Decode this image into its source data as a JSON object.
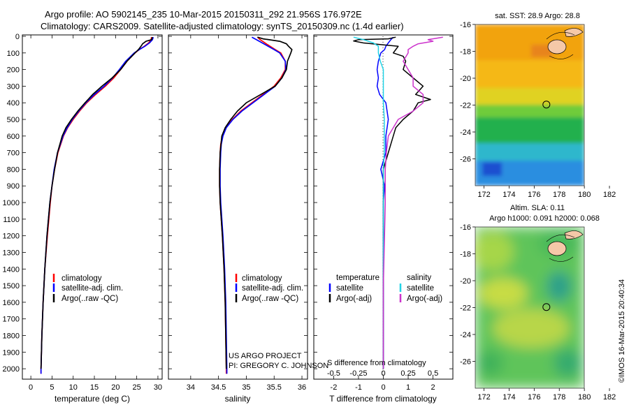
{
  "header": {
    "line1": "Argo profile: AO 5902145_235 10-Mar-2015 20150311_292 21.956S 176.972E",
    "line2": "Climatology: CARS2009. Satellite-adjusted climatology: synTS_20150309.nc (1.4d earlier)"
  },
  "colors": {
    "climatology": "#ff0000",
    "satellite": "#0000ff",
    "argo": "#000000",
    "sat_salinity": "#22d3e6",
    "argo_salinity": "#cc33cc"
  },
  "chart_data": [
    {
      "type": "line",
      "id": "temperature",
      "xlabel": "temperature (deg C)",
      "ylabel": "",
      "xlim": [
        -2,
        31
      ],
      "ylim": [
        2050,
        0
      ],
      "xticks": [
        0,
        5,
        10,
        15,
        20,
        25,
        30
      ],
      "yticks": [
        0,
        100,
        200,
        300,
        400,
        500,
        600,
        700,
        800,
        900,
        1000,
        1100,
        1200,
        1300,
        1400,
        1500,
        1600,
        1700,
        1800,
        1900,
        2000
      ],
      "legend": [
        "climatology",
        "satellite-adj. clim.",
        "Argo(..raw -QC)"
      ],
      "series": [
        {
          "key": "climatology",
          "color": "#ff0000",
          "y": [
            5,
            20,
            40,
            60,
            80,
            100,
            150,
            200,
            250,
            300,
            350,
            400,
            450,
            500,
            550,
            600,
            700,
            800,
            900,
            1000,
            1200,
            1400,
            1600,
            1800,
            2000,
            2030
          ],
          "x": [
            28.5,
            28.4,
            27.8,
            26.8,
            25.6,
            24.6,
            22.7,
            21.2,
            19.6,
            17.6,
            15.3,
            13.2,
            11.5,
            10.0,
            8.7,
            7.7,
            6.4,
            5.6,
            5.0,
            4.6,
            3.9,
            3.3,
            2.9,
            2.6,
            2.4,
            2.4
          ]
        },
        {
          "key": "satellite",
          "color": "#0000ff",
          "y": [
            5,
            20,
            40,
            60,
            80,
            100,
            150,
            200,
            250,
            300,
            350,
            400,
            450,
            500,
            550,
            600,
            700,
            800,
            900,
            1000,
            1200,
            1400,
            1600,
            1800,
            2000,
            2030
          ],
          "x": [
            28.9,
            28.7,
            28.0,
            26.9,
            25.6,
            24.4,
            22.4,
            20.9,
            19.3,
            17.3,
            15.0,
            13.0,
            11.3,
            9.8,
            8.6,
            7.6,
            6.3,
            5.5,
            5.0,
            4.5,
            3.8,
            3.3,
            2.9,
            2.6,
            2.4,
            2.4
          ]
        },
        {
          "key": "argo",
          "color": "#000000",
          "y": [
            5,
            20,
            30,
            45,
            60,
            80,
            100,
            150,
            200,
            250,
            300,
            350,
            400,
            450,
            500,
            550,
            600,
            700,
            800,
            900,
            1000,
            1200,
            1400,
            1600,
            1800,
            2000
          ],
          "x": [
            28.7,
            28.5,
            27.2,
            26.4,
            26.0,
            25.4,
            24.6,
            22.7,
            21.2,
            19.2,
            16.8,
            14.6,
            12.8,
            11.1,
            9.6,
            8.3,
            7.4,
            6.3,
            5.6,
            5.0,
            4.5,
            3.8,
            3.3,
            2.9,
            2.6,
            2.4
          ]
        }
      ]
    },
    {
      "type": "line",
      "id": "salinity",
      "xlabel": "salinity",
      "xlim": [
        33.6,
        36.1
      ],
      "ylim": [
        2050,
        0
      ],
      "xticks": [
        34,
        34.5,
        35,
        35.5,
        36
      ],
      "legend": [
        "climatology",
        "satellite-adj. clim.",
        "Argo(..raw -QC)"
      ],
      "annotation": [
        "US ARGO PROJECT",
        "PI: GREGORY C. JOHNSON"
      ],
      "series": [
        {
          "key": "climatology",
          "color": "#ff0000",
          "y": [
            5,
            20,
            50,
            80,
            100,
            150,
            200,
            250,
            300,
            350,
            400,
            450,
            500,
            550,
            600,
            650,
            700,
            800,
            900,
            1000,
            1100,
            1200,
            1400,
            1600,
            1800,
            2000,
            2030
          ],
          "x": [
            35.2,
            35.25,
            35.38,
            35.52,
            35.62,
            35.7,
            35.7,
            35.62,
            35.5,
            35.3,
            35.1,
            34.9,
            34.75,
            34.63,
            34.57,
            34.54,
            34.53,
            34.52,
            34.52,
            34.53,
            34.55,
            34.57,
            34.6,
            34.62,
            34.63,
            34.64,
            34.64
          ]
        },
        {
          "key": "satellite",
          "color": "#0000ff",
          "y": [
            5,
            20,
            50,
            80,
            100,
            150,
            200,
            250,
            300,
            350,
            400,
            450,
            500,
            550,
            600,
            650,
            700,
            800,
            900,
            1000,
            1100,
            1200,
            1400,
            1600,
            1800,
            2000,
            2030
          ],
          "x": [
            35.1,
            35.18,
            35.34,
            35.5,
            35.6,
            35.7,
            35.71,
            35.64,
            35.52,
            35.32,
            35.12,
            34.92,
            34.76,
            34.64,
            34.58,
            34.55,
            34.54,
            34.53,
            34.53,
            34.54,
            34.56,
            34.58,
            34.61,
            34.63,
            34.64,
            34.65,
            34.65
          ]
        },
        {
          "key": "argo",
          "color": "#000000",
          "y": [
            5,
            15,
            30,
            45,
            60,
            80,
            100,
            150,
            200,
            250,
            300,
            350,
            400,
            450,
            500,
            550,
            600,
            700,
            800,
            900,
            1000,
            1200,
            1400,
            1600,
            1800,
            2000
          ],
          "x": [
            35.2,
            35.3,
            35.6,
            35.72,
            35.76,
            35.82,
            35.8,
            35.74,
            35.72,
            35.64,
            35.52,
            35.26,
            35.0,
            34.84,
            34.72,
            34.62,
            34.56,
            34.53,
            34.52,
            34.52,
            34.53,
            34.57,
            34.6,
            34.62,
            34.63,
            34.64
          ]
        }
      ]
    },
    {
      "type": "line",
      "id": "difference",
      "xlabel": "T difference from climatology",
      "xlabel_top": "S difference from climatology",
      "xlim": [
        -2.8,
        2.8
      ],
      "ylim": [
        2050,
        0
      ],
      "xticks": [
        -2,
        -1,
        0,
        1,
        2
      ],
      "xticks_s": [
        "-0.5",
        "-0.25",
        "0",
        "0.25",
        "0.5"
      ],
      "legend_groups": [
        {
          "title": "temperature",
          "items": [
            "satellite",
            "Argo(-adj)"
          ]
        },
        {
          "title": "salinity",
          "items": [
            "satellite",
            "Argo(-adj)"
          ]
        }
      ],
      "series": [
        {
          "key": "t_satellite",
          "name": "satellite",
          "color": "#0000ff",
          "y": [
            5,
            20,
            40,
            60,
            80,
            100,
            150,
            200,
            250,
            300,
            350,
            400,
            500,
            600,
            700,
            800,
            900,
            1000,
            1500,
            2000
          ],
          "x": [
            0.4,
            0.3,
            0.2,
            0.1,
            0.05,
            -0.1,
            -0.2,
            -0.25,
            -0.2,
            -0.25,
            -0.15,
            0.1,
            0.2,
            0.1,
            0.1,
            -0.1,
            0.05,
            0.0,
            0.0,
            0.0
          ]
        },
        {
          "key": "t_argo",
          "name": "Argo(-adj)",
          "color": "#000000",
          "y": [
            5,
            15,
            20,
            28,
            40,
            60,
            80,
            100,
            120,
            150,
            200,
            250,
            300,
            350,
            380,
            400,
            450,
            500,
            550,
            600,
            700,
            800,
            900,
            1000,
            1200,
            1500,
            2000
          ],
          "x": [
            0.5,
            0.2,
            -1.0,
            -1.2,
            -0.8,
            0.6,
            0.5,
            0.4,
            0.8,
            0.9,
            0.8,
            1.2,
            1.6,
            1.3,
            1.9,
            1.4,
            1.2,
            0.8,
            0.5,
            0.4,
            0.2,
            0.0,
            0.0,
            0.0,
            0.0,
            0.0,
            0.0
          ]
        },
        {
          "key": "s_satellite",
          "name": "satellite",
          "color": "#22d3e6",
          "y": [
            5,
            20,
            40,
            60,
            80,
            100,
            150,
            200,
            300,
            400,
            500,
            600,
            700,
            800,
            900,
            1000,
            1500,
            2000
          ],
          "x": [
            -0.3,
            -0.2,
            -0.1,
            -0.05,
            -0.05,
            -0.05,
            -0.03,
            0.0,
            0.0,
            0.0,
            0.01,
            0.01,
            0.01,
            0.0,
            0.0,
            0.0,
            0.0,
            0.0
          ]
        },
        {
          "key": "s_argo",
          "name": "Argo(-adj)",
          "color": "#cc33cc",
          "y": [
            5,
            20,
            30,
            45,
            60,
            80,
            100,
            150,
            200,
            250,
            300,
            350,
            400,
            450,
            500,
            550,
            600,
            700,
            800,
            900,
            1000,
            1500,
            2000
          ],
          "x": [
            0.6,
            0.45,
            0.5,
            0.35,
            0.3,
            0.25,
            0.25,
            0.2,
            0.25,
            0.3,
            0.3,
            0.4,
            0.4,
            0.3,
            0.15,
            0.1,
            0.05,
            0.03,
            0.02,
            0.02,
            0.02,
            0.0,
            0.0
          ]
        }
      ]
    }
  ],
  "maps": {
    "sst": {
      "title": "sat. SST: 28.9 Argo: 28.8",
      "xticks": [
        172,
        174,
        176,
        178,
        180,
        182
      ],
      "yticks": [
        -16,
        -18,
        -20,
        -22,
        -24,
        -26
      ],
      "xlim": [
        171.3,
        182.5
      ],
      "ylim": [
        -28,
        -16
      ],
      "marker": {
        "lon": 176.97,
        "lat": -21.96
      }
    },
    "sla": {
      "title_line1": "Altim. SLA: 0.11",
      "title_line2": "Argo h1000: 0.091 h2000: 0.068",
      "xticks": [
        172,
        174,
        176,
        178,
        180,
        182
      ],
      "yticks": [
        -16,
        -18,
        -20,
        -22,
        -24,
        -26
      ],
      "xlim": [
        171.3,
        182.5
      ],
      "ylim": [
        -28,
        -16
      ],
      "marker": {
        "lon": 176.97,
        "lat": -21.96
      }
    }
  },
  "footer": {
    "credit": "©IMOS 16-Mar-2015 20:40:34"
  }
}
